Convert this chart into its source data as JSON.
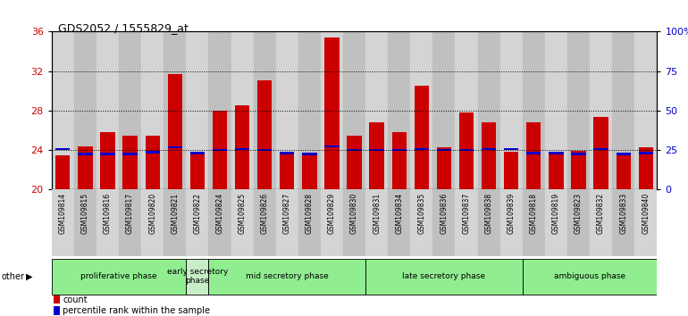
{
  "title": "GDS2052 / 1555829_at",
  "samples": [
    "GSM109814",
    "GSM109815",
    "GSM109816",
    "GSM109817",
    "GSM109820",
    "GSM109821",
    "GSM109822",
    "GSM109824",
    "GSM109825",
    "GSM109826",
    "GSM109827",
    "GSM109828",
    "GSM109829",
    "GSM109830",
    "GSM109831",
    "GSM109834",
    "GSM109835",
    "GSM109836",
    "GSM109837",
    "GSM109838",
    "GSM109839",
    "GSM109818",
    "GSM109819",
    "GSM109823",
    "GSM109832",
    "GSM109833",
    "GSM109840"
  ],
  "count_values": [
    23.5,
    24.4,
    25.8,
    25.5,
    25.5,
    31.7,
    23.7,
    28.0,
    28.5,
    31.1,
    23.6,
    23.7,
    35.4,
    25.5,
    26.8,
    25.8,
    30.5,
    24.3,
    27.8,
    26.8,
    23.8,
    26.8,
    23.7,
    23.9,
    27.4,
    23.6,
    24.3
  ],
  "percentile_values": [
    24.1,
    23.6,
    23.6,
    23.6,
    23.8,
    24.3,
    23.7,
    24.0,
    24.1,
    24.0,
    23.7,
    23.6,
    24.4,
    24.0,
    24.0,
    24.0,
    24.1,
    24.0,
    24.0,
    24.1,
    24.1,
    23.7,
    23.7,
    23.6,
    24.1,
    23.6,
    23.7
  ],
  "phases": [
    {
      "label": "proliferative phase",
      "start": 0,
      "end": 6,
      "color": "#90EE90"
    },
    {
      "label": "early secretory\nphase",
      "start": 6,
      "end": 7,
      "color": "#c8eec8"
    },
    {
      "label": "mid secretory phase",
      "start": 7,
      "end": 14,
      "color": "#90EE90"
    },
    {
      "label": "late secretory phase",
      "start": 14,
      "end": 21,
      "color": "#90EE90"
    },
    {
      "label": "ambiguous phase",
      "start": 21,
      "end": 27,
      "color": "#90EE90"
    }
  ],
  "bar_color": "#CC0000",
  "percentile_color": "#0000CC",
  "ylim_left": [
    20,
    36
  ],
  "ylim_right": [
    0,
    100
  ],
  "yticks_left": [
    20,
    24,
    28,
    32,
    36
  ],
  "yticks_right": [
    0,
    25,
    50,
    75,
    100
  ],
  "bar_width": 0.65,
  "stripe_colors": [
    "#d4d4d4",
    "#c0c0c0"
  ]
}
